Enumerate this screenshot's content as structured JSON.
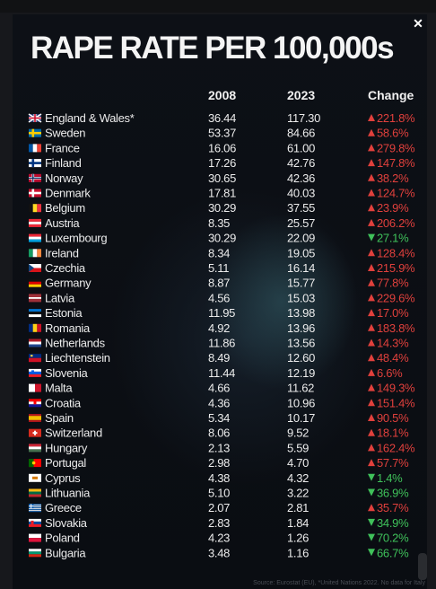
{
  "chart_data": {
    "type": "table",
    "title": "RAPE RATE PER 100,000s",
    "columns": [
      "2008",
      "2023",
      "Change"
    ],
    "rows": [
      {
        "country": "England & Wales*",
        "v2008": "36.44",
        "v2023": "117.30",
        "change": "221.8%",
        "direction": "up",
        "flag": "uk"
      },
      {
        "country": "Sweden",
        "v2008": "53.37",
        "v2023": "84.66",
        "change": "58.6%",
        "direction": "up",
        "flag": "se"
      },
      {
        "country": "France",
        "v2008": "16.06",
        "v2023": "61.00",
        "change": "279.8%",
        "direction": "up",
        "flag": "fr"
      },
      {
        "country": "Finland",
        "v2008": "17.26",
        "v2023": "42.76",
        "change": "147.8%",
        "direction": "up",
        "flag": "fi"
      },
      {
        "country": "Norway",
        "v2008": "30.65",
        "v2023": "42.36",
        "change": "38.2%",
        "direction": "up",
        "flag": "no"
      },
      {
        "country": "Denmark",
        "v2008": "17.81",
        "v2023": "40.03",
        "change": "124.7%",
        "direction": "up",
        "flag": "dk"
      },
      {
        "country": "Belgium",
        "v2008": "30.29",
        "v2023": "37.55",
        "change": "23.9%",
        "direction": "up",
        "flag": "be"
      },
      {
        "country": "Austria",
        "v2008": "8.35",
        "v2023": "25.57",
        "change": "206.2%",
        "direction": "up",
        "flag": "at"
      },
      {
        "country": "Luxembourg",
        "v2008": "30.29",
        "v2023": "22.09",
        "change": "27.1%",
        "direction": "down",
        "flag": "lu"
      },
      {
        "country": "Ireland",
        "v2008": "8.34",
        "v2023": "19.05",
        "change": "128.4%",
        "direction": "up",
        "flag": "ie"
      },
      {
        "country": "Czechia",
        "v2008": "5.11",
        "v2023": "16.14",
        "change": "215.9%",
        "direction": "up",
        "flag": "cz"
      },
      {
        "country": "Germany",
        "v2008": "8.87",
        "v2023": "15.77",
        "change": "77.8%",
        "direction": "up",
        "flag": "de"
      },
      {
        "country": "Latvia",
        "v2008": "4.56",
        "v2023": "15.03",
        "change": "229.6%",
        "direction": "up",
        "flag": "lv"
      },
      {
        "country": "Estonia",
        "v2008": "11.95",
        "v2023": "13.98",
        "change": "17.0%",
        "direction": "up",
        "flag": "ee"
      },
      {
        "country": "Romania",
        "v2008": "4.92",
        "v2023": "13.96",
        "change": "183.8%",
        "direction": "up",
        "flag": "ro"
      },
      {
        "country": "Netherlands",
        "v2008": "11.86",
        "v2023": "13.56",
        "change": "14.3%",
        "direction": "up",
        "flag": "nl"
      },
      {
        "country": "Liechtenstein",
        "v2008": "8.49",
        "v2023": "12.60",
        "change": "48.4%",
        "direction": "up",
        "flag": "li"
      },
      {
        "country": "Slovenia",
        "v2008": "11.44",
        "v2023": "12.19",
        "change": "6.6%",
        "direction": "up",
        "flag": "si"
      },
      {
        "country": "Malta",
        "v2008": "4.66",
        "v2023": "11.62",
        "change": "149.3%",
        "direction": "up",
        "flag": "mt"
      },
      {
        "country": "Croatia",
        "v2008": "4.36",
        "v2023": "10.96",
        "change": "151.4%",
        "direction": "up",
        "flag": "hr"
      },
      {
        "country": "Spain",
        "v2008": "5.34",
        "v2023": "10.17",
        "change": "90.5%",
        "direction": "up",
        "flag": "es"
      },
      {
        "country": "Switzerland",
        "v2008": "8.06",
        "v2023": "9.52",
        "change": "18.1%",
        "direction": "up",
        "flag": "ch"
      },
      {
        "country": "Hungary",
        "v2008": "2.13",
        "v2023": "5.59",
        "change": "162.4%",
        "direction": "up",
        "flag": "hu"
      },
      {
        "country": "Portugal",
        "v2008": "2.98",
        "v2023": "4.70",
        "change": "57.7%",
        "direction": "up",
        "flag": "pt"
      },
      {
        "country": "Cyprus",
        "v2008": "4.38",
        "v2023": "4.32",
        "change": "1.4%",
        "direction": "down",
        "flag": "cy"
      },
      {
        "country": "Lithuania",
        "v2008": "5.10",
        "v2023": "3.22",
        "change": "36.9%",
        "direction": "down",
        "flag": "lt"
      },
      {
        "country": "Greece",
        "v2008": "2.07",
        "v2023": "2.81",
        "change": "35.7%",
        "direction": "up",
        "flag": "gr"
      },
      {
        "country": "Slovakia",
        "v2008": "2.83",
        "v2023": "1.84",
        "change": "34.9%",
        "direction": "down",
        "flag": "sk"
      },
      {
        "country": "Poland",
        "v2008": "4.23",
        "v2023": "1.26",
        "change": "70.2%",
        "direction": "down",
        "flag": "pl"
      },
      {
        "country": "Bulgaria",
        "v2008": "3.48",
        "v2023": "1.16",
        "change": "66.7%",
        "direction": "down",
        "flag": "bg"
      }
    ],
    "colors": {
      "up": "#e0403c",
      "down": "#3fc15a",
      "text": "#ececec",
      "title": "#f4f4f4"
    }
  },
  "source_note": "Source: Eurostat (EU), *United Nations 2022. No data for Italy",
  "icons": {
    "close": "close-icon"
  }
}
